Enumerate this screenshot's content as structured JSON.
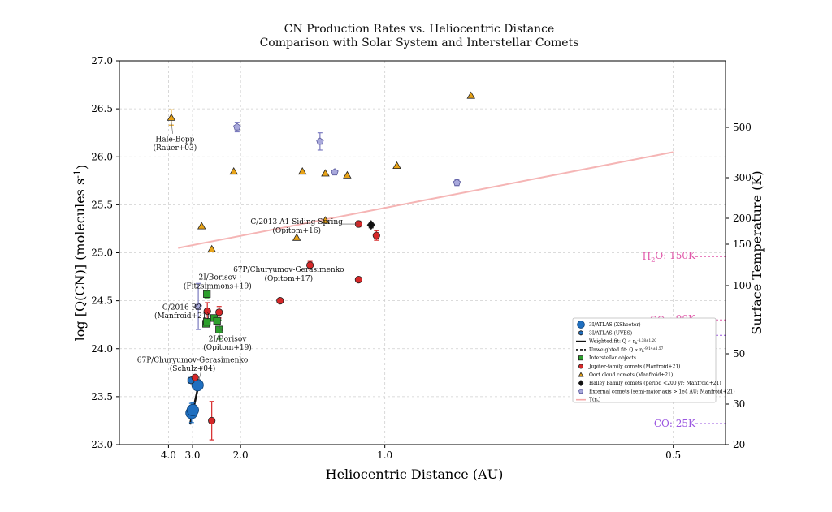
{
  "chart_data": {
    "type": "scatter",
    "title": "CN Production Rates vs. Heliocentric Distance",
    "subtitle": "Comparison with Solar System and Interstellar Comets",
    "xlabel": "Heliocentric Distance (AU)",
    "ylabel": "log [Q(CN)] (molecules s$^{-1}$)",
    "ylabel_right": "Surface Temperature (K)",
    "x_scale": "reciprocal",
    "xlim": [
      4.0,
      0.44
    ],
    "ylim": [
      23.0,
      27.0
    ],
    "x_ticks": [
      "4.0",
      "3.0",
      "2.0",
      "1.0",
      "0.5"
    ],
    "y_ticks": [
      "23.0",
      "23.5",
      "24.0",
      "24.5",
      "25.0",
      "25.5",
      "26.0",
      "26.5",
      "27.0"
    ],
    "right_ticks": [
      "500",
      "300",
      "200",
      "150",
      "100",
      "50",
      "30",
      "20"
    ],
    "grid": true,
    "legend_position": "lower-right",
    "series": [
      {
        "name": "3I/ATLAS (XShooter)",
        "marker": "circle-large",
        "color": "#1f6fc0",
        "points": [
          {
            "x": 3.03,
            "y": 23.33,
            "err": 0.1
          },
          {
            "x": 2.99,
            "y": 23.36,
            "err": 0.08
          },
          {
            "x": 2.85,
            "y": 23.62,
            "err": 0.05
          }
        ]
      },
      {
        "name": "3I/ATLAS (UVES)",
        "marker": "hexagon",
        "color": "#1f6fc0",
        "points": [
          {
            "x": 3.05,
            "y": 23.67,
            "err": 0.03
          }
        ]
      },
      {
        "name": "Interstellar objects",
        "marker": "square",
        "color": "#2ca02c",
        "points": [
          {
            "x": 2.61,
            "y": 24.57,
            "err": 0.04
          },
          {
            "x": 2.63,
            "y": 24.26,
            "err": 0.03
          },
          {
            "x": 2.61,
            "y": 24.28,
            "err": 0.03
          },
          {
            "x": 2.45,
            "y": 24.32,
            "err": 0.03
          },
          {
            "x": 2.39,
            "y": 24.29,
            "err": 0.03
          },
          {
            "x": 2.35,
            "y": 24.2,
            "err": 0.1
          }
        ]
      },
      {
        "name": "Jupiter-family comets (Manfroid+21)",
        "marker": "circle",
        "color": "#d62728",
        "points": [
          {
            "x": 2.6,
            "y": 24.39,
            "err": 0.09
          },
          {
            "x": 2.35,
            "y": 24.38,
            "err": 0.06
          },
          {
            "x": 2.92,
            "y": 23.7,
            "err": 0.0
          },
          {
            "x": 2.5,
            "y": 23.25,
            "err": 0.2
          },
          {
            "x": 1.57,
            "y": 24.5,
            "err": 0.0
          },
          {
            "x": 1.35,
            "y": 24.87,
            "err": 0.04
          },
          {
            "x": 1.1,
            "y": 24.72,
            "err": 0.0
          },
          {
            "x": 1.1,
            "y": 25.3,
            "err": 0.03
          },
          {
            "x": 1.03,
            "y": 25.18,
            "err": 0.05
          }
        ]
      },
      {
        "name": "Oort cloud comets (Manfroid+21)",
        "marker": "triangle",
        "color": "#e8a317",
        "points": [
          {
            "x": 3.85,
            "y": 26.41,
            "err": 0.08
          },
          {
            "x": 2.74,
            "y": 25.28,
            "err": 0.0
          },
          {
            "x": 2.5,
            "y": 25.04,
            "err": 0.0
          },
          {
            "x": 2.1,
            "y": 25.85,
            "err": 0.0
          },
          {
            "x": 1.44,
            "y": 25.16,
            "err": 0.0
          },
          {
            "x": 1.4,
            "y": 25.85,
            "err": 0.0
          },
          {
            "x": 1.26,
            "y": 25.83,
            "err": 0.0
          },
          {
            "x": 1.26,
            "y": 25.34,
            "err": 0.0
          },
          {
            "x": 1.15,
            "y": 25.81,
            "err": 0.0
          },
          {
            "x": 0.96,
            "y": 25.91,
            "err": 0.0
          },
          {
            "x": 0.77,
            "y": 26.64,
            "err": 0.0
          }
        ]
      },
      {
        "name": "Halley Family comets (period <200 yr; Manfroid+21)",
        "marker": "diamond",
        "color": "#111111",
        "points": [
          {
            "x": 1.05,
            "y": 25.29,
            "err": 0.03
          }
        ]
      },
      {
        "name": "External comets (semi-major axis > 1e4 AU; Manfroid+21)",
        "marker": "pentagon",
        "color": "#a9a9dc",
        "points": [
          {
            "x": 2.05,
            "y": 26.31,
            "err": 0.05
          },
          {
            "x": 1.29,
            "y": 26.16,
            "err": 0.09
          },
          {
            "x": 1.21,
            "y": 25.84,
            "err": 0.0
          },
          {
            "x": 0.8,
            "y": 25.73,
            "err": 0.03
          },
          {
            "x": 2.83,
            "y": 24.44,
            "err": 0.24
          }
        ]
      }
    ],
    "fits": [
      {
        "name": "Weighted fit: $Q \\propto r_h^{-8.38\\pm1.20}$",
        "style": "solid",
        "color": "#111111",
        "x": [
          3.08,
          2.79
        ],
        "y": [
          23.21,
          23.68
        ]
      },
      {
        "name": "Unweighted fit: $Q \\propto r_h^{-9.14\\pm1.57}$",
        "style": "dashed",
        "color": "#111111",
        "x": [],
        "y": []
      },
      {
        "name": "T(r_h)",
        "style": "solid",
        "color": "#f4a9a9",
        "x": [
          3.53,
          0.5
        ],
        "y": [
          25.05,
          26.05
        ]
      }
    ],
    "temperature_references": [
      {
        "label": "H$_2$O: 150K",
        "y": 24.96,
        "color": "#e055a8"
      },
      {
        "label": "CO$_2$: 90K",
        "y": 24.3,
        "color": "#e055a8"
      },
      {
        "label": "NH$_3$: 78K",
        "y": 24.14,
        "color": "#9a55e0"
      },
      {
        "label": "CO: 25K",
        "y": 23.22,
        "color": "#9a55e0"
      }
    ],
    "annotations": [
      {
        "lines": [
          "Hale-Bopp",
          "(Rauer+03)"
        ],
        "x": 3.67,
        "y": 26.16
      },
      {
        "lines": [
          "2I/Borisov",
          "(Fitzsimmons+19)"
        ],
        "x": 2.38,
        "y": 24.72
      },
      {
        "lines": [
          "C/2016 R2",
          "(Manfroid+21)"
        ],
        "x": 3.37,
        "y": 24.41
      },
      {
        "lines": [
          "2I/Borisov",
          "(Opitom+19)"
        ],
        "x": 2.2,
        "y": 24.08
      },
      {
        "lines": [
          "67P/Churyumov-Gerasimenko",
          "(Schulz+04)"
        ],
        "x": 3.0,
        "y": 23.86
      },
      {
        "lines": [
          "C/2013 A1 Siding Spring",
          "(Opitom+16)"
        ],
        "x": 1.44,
        "y": 25.3
      },
      {
        "lines": [
          "67P/Churyumov-Gerasimenko",
          "(Opitom+17)"
        ],
        "x": 1.5,
        "y": 24.8
      }
    ]
  }
}
